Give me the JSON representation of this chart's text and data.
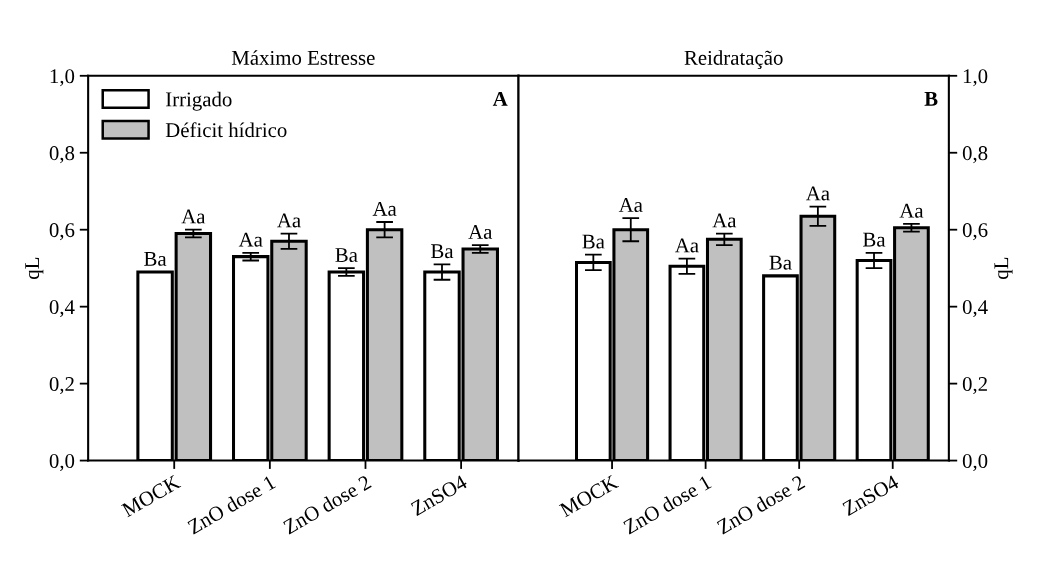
{
  "chart_data": [
    {
      "type": "bar",
      "title": "Máximo Estresse",
      "ylabel": "qL",
      "categories": [
        "MOCK",
        "ZnO dose 1",
        "ZnO dose 2",
        "ZnSO4"
      ],
      "ylim": [
        0,
        1
      ],
      "yticks": [
        {
          "value": 0,
          "label": "0,0"
        },
        {
          "value": 0.2,
          "label": "0,2"
        },
        {
          "value": 0.4,
          "label": "0,4"
        },
        {
          "value": 0.6,
          "label": "0,6"
        },
        {
          "value": 0.8,
          "label": "0,8"
        },
        {
          "value": 1,
          "label": "1,0"
        }
      ],
      "legend": "top left",
      "grid": false,
      "annotations": [
        "A"
      ],
      "series": [
        {
          "name": "Irrigado",
          "color": "#ffffff",
          "values": [
            0.49,
            0.53,
            0.49,
            0.49
          ],
          "errors": [
            null,
            0.01,
            0.01,
            0.02
          ],
          "value_labels": [
            "Ba",
            "Aa",
            "Ba",
            "Ba"
          ]
        },
        {
          "name": "Déficit hídrico",
          "color": "#c0c0c0",
          "values": [
            0.59,
            0.57,
            0.6,
            0.55
          ],
          "errors": [
            0.01,
            0.02,
            0.02,
            0.01
          ],
          "value_labels": [
            "Aa",
            "Aa",
            "Aa",
            "Aa"
          ]
        }
      ]
    },
    {
      "type": "bar",
      "title": "Reidratação",
      "y2label": "qL",
      "categories": [
        "MOCK",
        "ZnO dose 1",
        "ZnO dose 2",
        "ZnSO4"
      ],
      "y2lim": [
        0,
        1
      ],
      "y2ticks": [
        {
          "value": 0,
          "label": "0,0"
        },
        {
          "value": 0.2,
          "label": "0,2"
        },
        {
          "value": 0.4,
          "label": "0,4"
        },
        {
          "value": 0.6,
          "label": "0,6"
        },
        {
          "value": 0.8,
          "label": "0,8"
        },
        {
          "value": 1,
          "label": "1,0"
        }
      ],
      "grid": false,
      "annotations": [
        "B"
      ],
      "series": [
        {
          "color": "#ffffff",
          "axis": "y2",
          "values": [
            0.515,
            0.505,
            0.48,
            0.52
          ],
          "errors": [
            0.02,
            0.02,
            null,
            0.02
          ],
          "value_labels": [
            "Ba",
            "Aa",
            "Ba",
            "Ba"
          ]
        },
        {
          "color": "#c0c0c0",
          "axis": "y2",
          "values": [
            0.6,
            0.575,
            0.635,
            0.605
          ],
          "errors": [
            0.03,
            0.015,
            0.025,
            0.01
          ],
          "value_labels": [
            "Aa",
            "Aa",
            "Aa",
            "Aa"
          ]
        }
      ]
    }
  ]
}
